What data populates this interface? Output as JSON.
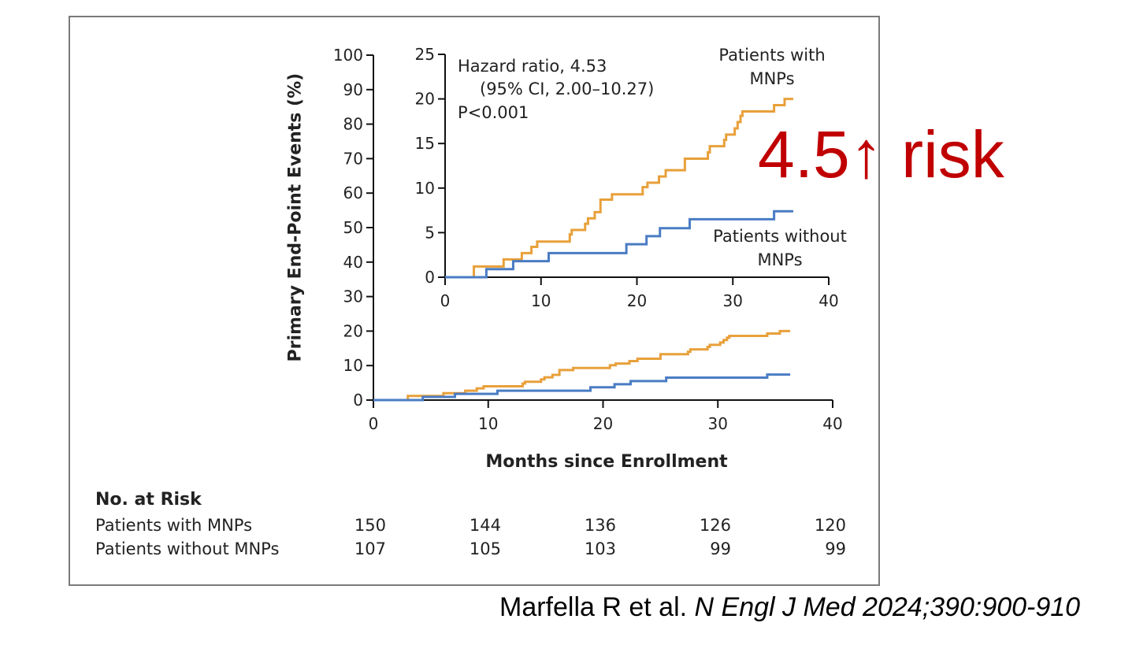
{
  "chart_data": {
    "type": "line",
    "subtype": "kaplan-meier step",
    "xlabel": "Months since Enrollment",
    "ylabel": "Primary End-Point Events (%)",
    "xlim": [
      0,
      40
    ],
    "ylim": [
      0,
      100
    ],
    "xticks": [
      0,
      10,
      20,
      30,
      40
    ],
    "yticks": [
      0,
      10,
      20,
      30,
      40,
      50,
      60,
      70,
      80,
      90,
      100
    ],
    "inset": {
      "xlim": [
        0,
        40
      ],
      "ylim": [
        0,
        25
      ],
      "xticks": [
        0,
        10,
        20,
        30,
        40
      ],
      "yticks": [
        0,
        5,
        10,
        15,
        20,
        25
      ]
    },
    "annotation": {
      "line1": "Hazard ratio, 4.53",
      "line2": "(95% CI, 2.00–10.27)",
      "line3": "P<0.001"
    },
    "series": [
      {
        "name": "Patients with MNPs",
        "label1": "Patients with",
        "label2": "MNPs",
        "color": "#e8a03a",
        "steps": [
          [
            0,
            0
          ],
          [
            3.0,
            1.2
          ],
          [
            6.1,
            2.0
          ],
          [
            8.0,
            2.7
          ],
          [
            9.0,
            3.4
          ],
          [
            9.6,
            4.0
          ],
          [
            13.0,
            4.8
          ],
          [
            13.2,
            5.3
          ],
          [
            14.6,
            6.0
          ],
          [
            14.9,
            6.6
          ],
          [
            15.6,
            7.3
          ],
          [
            16.2,
            8.7
          ],
          [
            17.4,
            9.3
          ],
          [
            20.6,
            10.1
          ],
          [
            21.1,
            10.6
          ],
          [
            22.3,
            11.3
          ],
          [
            23.0,
            12.0
          ],
          [
            25.0,
            13.3
          ],
          [
            27.4,
            14.0
          ],
          [
            27.6,
            14.7
          ],
          [
            29.1,
            15.4
          ],
          [
            29.3,
            16.0
          ],
          [
            30.2,
            16.7
          ],
          [
            30.5,
            17.4
          ],
          [
            30.8,
            18.1
          ],
          [
            31.0,
            18.6
          ],
          [
            34.3,
            19.3
          ],
          [
            35.4,
            20.0
          ]
        ],
        "end": 36.3
      },
      {
        "name": "Patients without MNPs",
        "label1": "Patients without",
        "label2": "MNPs",
        "color": "#4a7cc4",
        "steps": [
          [
            0,
            0
          ],
          [
            4.3,
            0.9
          ],
          [
            7.1,
            1.8
          ],
          [
            10.8,
            2.7
          ],
          [
            18.9,
            3.7
          ],
          [
            21.0,
            4.6
          ],
          [
            22.4,
            5.5
          ],
          [
            25.5,
            6.5
          ],
          [
            34.3,
            7.4
          ]
        ],
        "end": 36.3
      }
    ]
  },
  "risk_table": {
    "title": "No. at Risk",
    "rows": [
      {
        "label": "Patients with MNPs",
        "values": [
          "150",
          "144",
          "136",
          "126",
          "120"
        ]
      },
      {
        "label": "Patients without MNPs",
        "values": [
          "107",
          "105",
          "103",
          "99",
          "99"
        ]
      }
    ]
  },
  "overlay": {
    "big_text": "4.5↑ risk",
    "citation_authors": "Marfella R et al. ",
    "citation_journal": "N Engl J Med 2024;390:900-910"
  }
}
